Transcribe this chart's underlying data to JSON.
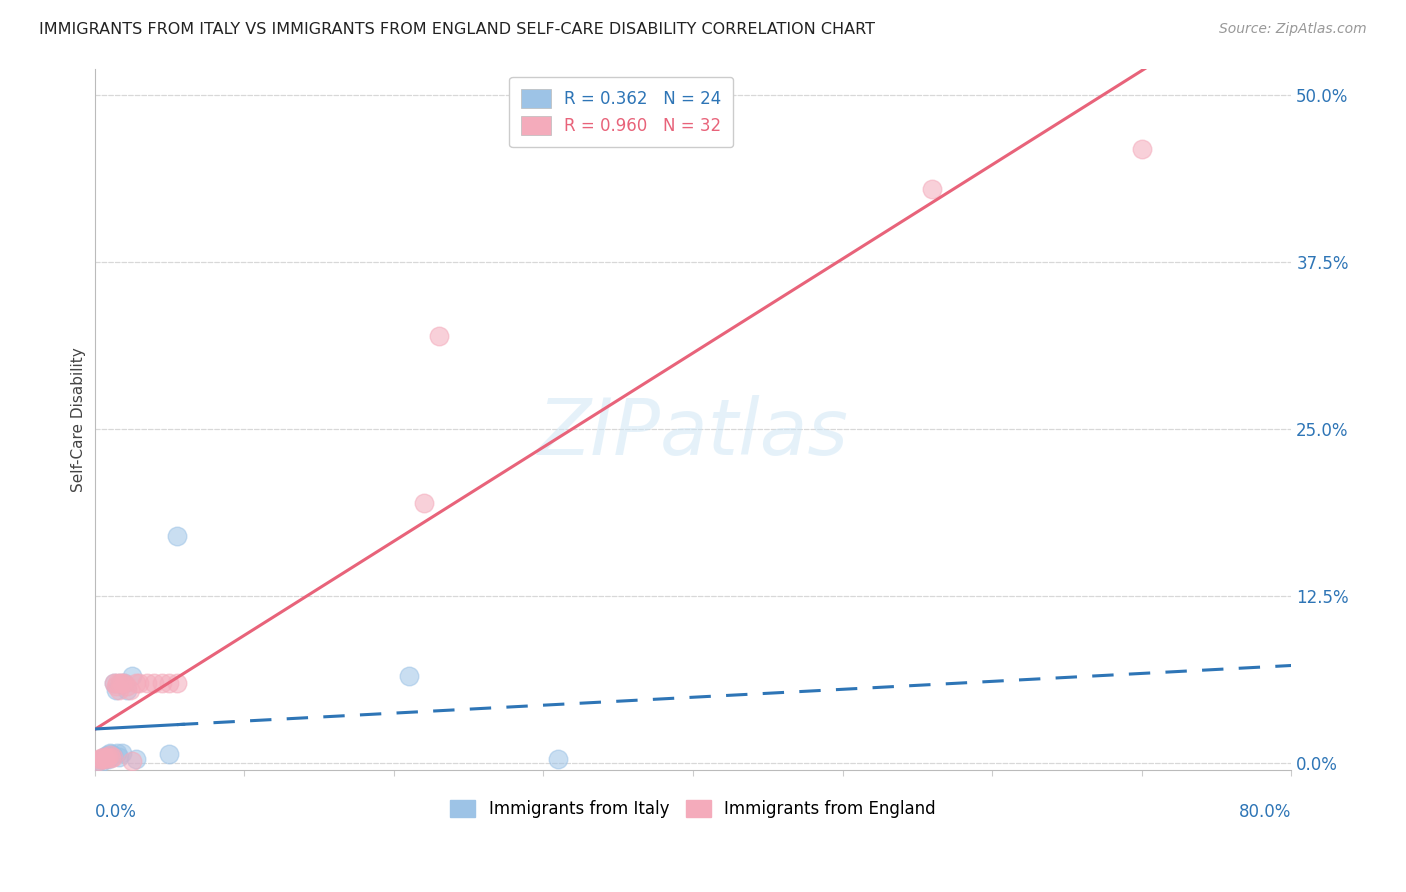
{
  "title": "IMMIGRANTS FROM ITALY VS IMMIGRANTS FROM ENGLAND SELF-CARE DISABILITY CORRELATION CHART",
  "source": "Source: ZipAtlas.com",
  "ylabel": "Self-Care Disability",
  "ytick_values": [
    0.0,
    0.125,
    0.25,
    0.375,
    0.5
  ],
  "xlim": [
    0.0,
    0.8
  ],
  "ylim": [
    -0.005,
    0.52
  ],
  "italy_color": "#9DC3E6",
  "england_color": "#F4ABBB",
  "italy_line_color": "#2E75B6",
  "england_line_color": "#E8637A",
  "italy_scatter_x": [
    0.002,
    0.004,
    0.005,
    0.006,
    0.007,
    0.008,
    0.009,
    0.01,
    0.011,
    0.012,
    0.013,
    0.014,
    0.015,
    0.016,
    0.017,
    0.018,
    0.02,
    0.022,
    0.025,
    0.028,
    0.05,
    0.055,
    0.21,
    0.31
  ],
  "italy_scatter_y": [
    0.002,
    0.001,
    0.003,
    0.005,
    0.004,
    0.006,
    0.003,
    0.008,
    0.007,
    0.006,
    0.06,
    0.055,
    0.008,
    0.005,
    0.06,
    0.008,
    0.06,
    0.055,
    0.065,
    0.003,
    0.007,
    0.17,
    0.065,
    0.003
  ],
  "england_scatter_x": [
    0.002,
    0.003,
    0.004,
    0.005,
    0.006,
    0.007,
    0.008,
    0.009,
    0.01,
    0.011,
    0.012,
    0.013,
    0.014,
    0.015,
    0.016,
    0.017,
    0.018,
    0.02,
    0.022,
    0.024,
    0.025,
    0.028,
    0.03,
    0.035,
    0.04,
    0.045,
    0.05,
    0.055,
    0.22,
    0.23,
    0.56,
    0.7
  ],
  "england_scatter_y": [
    0.002,
    0.003,
    0.004,
    0.003,
    0.005,
    0.003,
    0.004,
    0.005,
    0.006,
    0.004,
    0.005,
    0.06,
    0.058,
    0.06,
    0.055,
    0.06,
    0.06,
    0.06,
    0.058,
    0.055,
    0.002,
    0.06,
    0.06,
    0.06,
    0.06,
    0.06,
    0.06,
    0.06,
    0.195,
    0.32,
    0.43,
    0.46
  ],
  "watermark": "ZIPatlas",
  "background_color": "#ffffff",
  "grid_color": "#d8d8d8"
}
